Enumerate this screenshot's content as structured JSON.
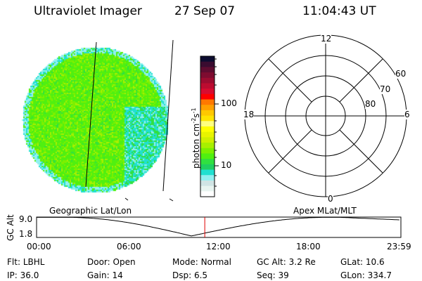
{
  "header": {
    "instrument": "Ultraviolet Imager",
    "date": "27 Sep 07",
    "time": "11:04:43 UT"
  },
  "colorbar": {
    "label": "photon cm",
    "sup1": "-2",
    "mid": "s",
    "sup2": "-1",
    "ticks": [
      "100",
      "10"
    ],
    "colors": [
      "#0c0c30",
      "#3a0c30",
      "#5e0c30",
      "#7e0c30",
      "#9c0c30",
      "#bc0c30",
      "#d80c30",
      "#ff0000",
      "#ff7800",
      "#ffa000",
      "#ffc800",
      "#ffe400",
      "#ffff80",
      "#ffff00",
      "#e8f400",
      "#cff000",
      "#a8f000",
      "#7cf000",
      "#50f010",
      "#30e040",
      "#20d060",
      "#20e0d0",
      "#90f0f0",
      "#d0e4e4",
      "#e8f4f0",
      "#ffffff"
    ]
  },
  "polar": {
    "mlt_labels": {
      "top": "12",
      "left": "18",
      "right": "6",
      "bottom": "0"
    },
    "lat_labels": [
      "60",
      "70",
      "80"
    ]
  },
  "altplot": {
    "left_title": "Geographic Lat/Lon",
    "right_title": "Apex MLat/MLT",
    "ylabel": "GC Alt",
    "yticks": [
      "9.0",
      "1.8"
    ],
    "xticks": [
      "00:00",
      "06:00",
      "12:00",
      "18:00",
      "23:59"
    ],
    "current_time_hours": 11.08
  },
  "status": [
    {
      "label": "Flt:",
      "value": "LBHL"
    },
    {
      "label": "Door:",
      "value": "Open"
    },
    {
      "label": "Mode:",
      "value": "Normal"
    },
    {
      "label": "GC Alt:",
      "value": "3.2 Re"
    },
    {
      "label": "GLat:",
      "value": "10.6"
    },
    {
      "label": "IP:",
      "value": "36.0"
    },
    {
      "label": "Gain:",
      "value": "14"
    },
    {
      "label": "Dsp:",
      "value": "6.5"
    },
    {
      "label": "Seq:",
      "value": "39"
    },
    {
      "label": "GLon:",
      "value": "334.7"
    }
  ]
}
